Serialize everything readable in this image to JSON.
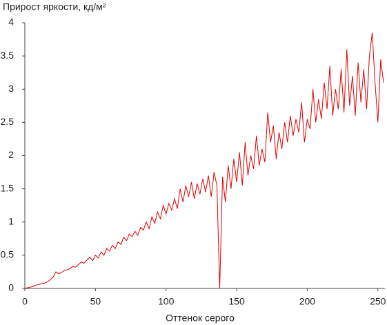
{
  "chart_data": {
    "type": "line",
    "title": "Прирост яркости, кд/м²",
    "x_label": "Оттенок серого",
    "color": "#e00000",
    "xlim": [
      0,
      255
    ],
    "xticks": [
      0,
      50,
      100,
      150,
      200,
      250
    ],
    "ylim": [
      0,
      4
    ],
    "yticks": [
      0,
      0.5,
      1,
      1.5,
      2,
      2.5,
      3,
      3.5,
      4
    ],
    "grid": false,
    "x": [
      0,
      2,
      4,
      6,
      8,
      10,
      12,
      14,
      16,
      18,
      20,
      22,
      24,
      26,
      28,
      30,
      32,
      34,
      36,
      38,
      40,
      42,
      44,
      46,
      48,
      50,
      52,
      54,
      56,
      58,
      60,
      62,
      64,
      66,
      68,
      70,
      72,
      74,
      76,
      78,
      80,
      82,
      84,
      86,
      88,
      90,
      92,
      94,
      96,
      98,
      100,
      102,
      104,
      106,
      108,
      110,
      112,
      114,
      116,
      118,
      120,
      122,
      124,
      126,
      128,
      130,
      132,
      134,
      136,
      138,
      140,
      142,
      144,
      146,
      148,
      150,
      152,
      154,
      156,
      158,
      160,
      162,
      164,
      166,
      168,
      170,
      172,
      174,
      176,
      178,
      180,
      182,
      184,
      186,
      188,
      190,
      192,
      194,
      196,
      198,
      200,
      202,
      204,
      206,
      208,
      210,
      212,
      214,
      216,
      218,
      220,
      222,
      224,
      226,
      228,
      230,
      232,
      234,
      236,
      238,
      240,
      242,
      244,
      246,
      248,
      250,
      252,
      254
    ],
    "values": [
      0,
      0.01,
      0.02,
      0.03,
      0.05,
      0.06,
      0.07,
      0.08,
      0.1,
      0.13,
      0.17,
      0.25,
      0.22,
      0.24,
      0.27,
      0.28,
      0.3,
      0.33,
      0.32,
      0.36,
      0.4,
      0.38,
      0.43,
      0.47,
      0.42,
      0.5,
      0.46,
      0.55,
      0.5,
      0.6,
      0.56,
      0.65,
      0.6,
      0.7,
      0.66,
      0.77,
      0.72,
      0.82,
      0.78,
      0.86,
      0.8,
      0.92,
      0.88,
      1.0,
      0.9,
      1.08,
      0.98,
      1.15,
      1.05,
      1.25,
      1.12,
      1.28,
      1.18,
      1.35,
      1.2,
      1.5,
      1.3,
      1.55,
      1.38,
      1.6,
      1.35,
      1.58,
      1.42,
      1.65,
      1.45,
      1.7,
      1.38,
      1.75,
      1.55,
      0.0,
      1.68,
      1.3,
      1.85,
      1.5,
      1.95,
      1.6,
      2.05,
      1.55,
      2.2,
      1.7,
      2.0,
      1.8,
      2.3,
      1.85,
      2.1,
      1.9,
      2.65,
      2.2,
      2.45,
      1.95,
      2.35,
      2.1,
      2.5,
      2.2,
      2.6,
      2.3,
      2.55,
      2.35,
      2.8,
      2.2,
      2.55,
      2.4,
      3.0,
      2.5,
      2.85,
      2.55,
      3.1,
      2.7,
      3.35,
      2.6,
      3.0,
      2.7,
      3.3,
      2.65,
      3.6,
      2.75,
      3.2,
      2.6,
      3.4,
      2.8,
      3.3,
      2.7,
      3.5,
      3.85,
      3.1,
      2.5,
      3.45,
      3.1
    ]
  }
}
